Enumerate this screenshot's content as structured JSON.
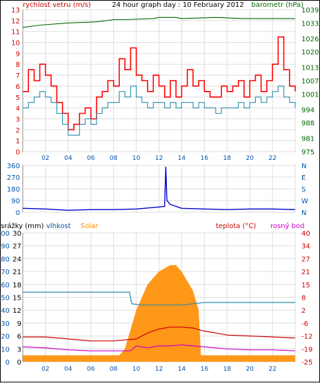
{
  "chart_data": [
    {
      "type": "line",
      "title": "24 hour graph day : 10 February 2012",
      "left_axis_title": "rychlost vetru (m/s)",
      "right_axis_title": "barometr (hPa)",
      "x_ticks": [
        "02",
        "04",
        "06",
        "08",
        "10",
        "12",
        "14",
        "16",
        "18",
        "20",
        "22"
      ],
      "left_ticks": [
        "0",
        "1",
        "2",
        "3",
        "4",
        "5",
        "6",
        "7",
        "8",
        "9",
        "10",
        "11",
        "12",
        "13"
      ],
      "right_ticks": [
        "975",
        "981",
        "988",
        "994",
        "1001",
        "1007",
        "1013",
        "1020",
        "1026",
        "1033",
        "1039"
      ],
      "ylim_left": [
        0,
        13
      ],
      "ylim_right": [
        975,
        1039
      ],
      "grid": true,
      "series": [
        {
          "color": "#ff0000",
          "hour": [
            0,
            0.5,
            1,
            1.5,
            2,
            2.5,
            3,
            3.5,
            4,
            4.5,
            5,
            5.5,
            6,
            6.5,
            7,
            7.5,
            8,
            8.5,
            9,
            9.5,
            10,
            10.5,
            11,
            11.5,
            12,
            12.5,
            13,
            13.5,
            14,
            14.5,
            15,
            15.5,
            16,
            16.5,
            17,
            17.5,
            18,
            18.5,
            19,
            19.5,
            20,
            20.5,
            21,
            21.5,
            22,
            22.5,
            23,
            23.5,
            24
          ],
          "value": [
            5.5,
            7.5,
            6.5,
            8,
            7,
            6,
            4.5,
            3.5,
            2,
            2.5,
            3.5,
            4,
            3,
            5,
            5.5,
            6.5,
            6,
            8.5,
            7.5,
            9.5,
            7,
            6.5,
            5.5,
            7,
            6,
            5,
            6.5,
            5,
            6,
            7.5,
            6,
            6.5,
            5.5,
            5,
            5,
            6,
            5.5,
            6,
            6.5,
            5,
            6.5,
            7,
            5.5,
            6.5,
            8,
            10.5,
            7.5,
            6,
            5.5
          ]
        },
        {
          "color": "#2a8ba8",
          "hour": [
            0,
            0.5,
            1,
            1.5,
            2,
            2.5,
            3,
            3.5,
            4,
            4.5,
            5,
            5.5,
            6,
            6.5,
            7,
            7.5,
            8,
            8.5,
            9,
            9.5,
            10,
            10.5,
            11,
            11.5,
            12,
            12.5,
            13,
            13.5,
            14,
            14.5,
            15,
            15.5,
            16,
            16.5,
            17,
            17.5,
            18,
            18.5,
            19,
            19.5,
            20,
            20.5,
            21,
            21.5,
            22,
            22.5,
            23,
            23.5,
            24
          ],
          "value": [
            4,
            4.5,
            5,
            5.5,
            5,
            4.5,
            3.5,
            2.5,
            1.5,
            1.5,
            2.5,
            3,
            2.5,
            3.5,
            4,
            4.5,
            4.5,
            5.5,
            5,
            6,
            5,
            4.5,
            4,
            4.5,
            4.5,
            4,
            4.5,
            4,
            4.5,
            4.5,
            4,
            4.5,
            4,
            4,
            3.5,
            4,
            4,
            4,
            4.5,
            4,
            4.5,
            5,
            4.5,
            5,
            5.5,
            6,
            5,
            4.5,
            4
          ]
        },
        {
          "color": "#006600",
          "hour": [
            0,
            1.5,
            4,
            6.5,
            8,
            8.5,
            9,
            11.5,
            12,
            13.5,
            14,
            17,
            19.5,
            22,
            24
          ],
          "value": [
            1031,
            1032,
            1033,
            1033.5,
            1034.5,
            1034.5,
            1034.5,
            1035,
            1035.5,
            1035.5,
            1035,
            1035.5,
            1035,
            1035,
            1035
          ]
        }
      ]
    },
    {
      "type": "line",
      "left_ticks": [
        "0",
        "90",
        "180",
        "270",
        "360"
      ],
      "right_labels": [
        "N",
        "W",
        "S",
        "E",
        "N"
      ],
      "ylim": [
        0,
        360
      ],
      "series": [
        {
          "color": "#0000cc",
          "hour": [
            0,
            2,
            4,
            6,
            8,
            10,
            12,
            12.5,
            12.6,
            12.7,
            13,
            14,
            16,
            18,
            20,
            22,
            24
          ],
          "value": [
            30,
            25,
            15,
            20,
            20,
            25,
            40,
            45,
            350,
            90,
            60,
            30,
            25,
            20,
            25,
            25,
            20
          ]
        }
      ]
    },
    {
      "type": "line",
      "legend": [
        {
          "label": "srážky (mm)",
          "color": "#000000"
        },
        {
          "label": "vlhkost",
          "color": "#0055aa"
        },
        {
          "label": "Solar",
          "color": "#ff8c00"
        },
        {
          "label": "teplota (°C)",
          "color": "#cc0000"
        },
        {
          "label": "rosný bod",
          "color": "#cc00cc"
        }
      ],
      "left_ticks_rain": [
        "0",
        "3",
        "6",
        "9",
        "12",
        "15",
        "18",
        "21",
        "24",
        "27",
        "30"
      ],
      "left_ticks_humidity": [
        "0",
        "10",
        "20",
        "30",
        "40",
        "50",
        "60",
        "70",
        "80",
        "90",
        "100"
      ],
      "right_ticks": [
        "-25",
        "-19",
        "-12",
        "-6",
        "2",
        "8",
        "15",
        "21",
        "27",
        "34",
        "40"
      ],
      "x_ticks": [
        "02",
        "04",
        "06",
        "08",
        "10",
        "12",
        "14",
        "16",
        "18",
        "20",
        "22"
      ],
      "series": [
        {
          "name": "vlhkost",
          "color": "#2a8ba8",
          "hour": [
            0,
            4,
            8,
            9.4,
            9.6,
            10.5,
            12,
            14,
            16,
            18,
            20,
            22,
            24
          ],
          "value": [
            54,
            54,
            54,
            54,
            45,
            44,
            44,
            44,
            46,
            46,
            46,
            46,
            46
          ]
        },
        {
          "name": "teplota (°C)",
          "color": "#cc0000",
          "hour": [
            0,
            2,
            4,
            6,
            8,
            10,
            11,
            12,
            13,
            14,
            15,
            16,
            18,
            20,
            22,
            24
          ],
          "value": [
            -12.5,
            -12.5,
            -13.5,
            -14.5,
            -14.5,
            -13.5,
            -10.5,
            -8.5,
            -7.5,
            -7.5,
            -8,
            -9.5,
            -11.5,
            -12,
            -12.5,
            -13
          ]
        },
        {
          "name": "rosný bod",
          "color": "#cc00cc",
          "hour": [
            0,
            2,
            4,
            6,
            8,
            9.5,
            10,
            11,
            12,
            13,
            14,
            15,
            16,
            18,
            20,
            22,
            24
          ],
          "value": [
            -17.5,
            -18,
            -19,
            -19.5,
            -19.5,
            -19.5,
            -17,
            -18,
            -17,
            -17,
            -16.5,
            -17,
            -17.5,
            -18.5,
            -19,
            -19,
            -19.5
          ]
        },
        {
          "name": "Solar",
          "color": "#ff8c00",
          "hour": [
            0,
            7,
            8,
            8.5,
            9,
            10,
            11,
            12,
            13,
            13.5,
            14,
            15,
            15.5,
            15.7,
            15.9,
            24
          ],
          "value": [
            5,
            5,
            5,
            5,
            10,
            40,
            60,
            70,
            75,
            75,
            70,
            55,
            40,
            5,
            5,
            5
          ]
        }
      ]
    }
  ]
}
